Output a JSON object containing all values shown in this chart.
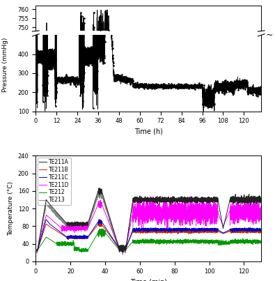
{
  "pressure_chart": {
    "xlabel": "Time (h)",
    "ylabel": "Pressure (mmHg)",
    "xlim": [
      0,
      130
    ],
    "ylim": [
      100,
      760
    ],
    "yticks_bottom": [
      100,
      200,
      300,
      400
    ],
    "yticks_top": [
      750,
      755,
      760
    ],
    "xticks": [
      0,
      12,
      24,
      36,
      48,
      60,
      72,
      84,
      96,
      108,
      120
    ],
    "color": "black"
  },
  "temperature_chart": {
    "xlabel": "Time (min)",
    "ylabel": "Temperature (°C)",
    "xlim": [
      0,
      130
    ],
    "ylim": [
      0,
      240
    ],
    "yticks": [
      0,
      40,
      80,
      120,
      160,
      200,
      240
    ],
    "xticks": [
      0,
      20,
      40,
      60,
      80,
      100,
      120
    ],
    "legend": [
      "TE211A",
      "TE211B",
      "TE211C",
      "TE211D",
      "TE212",
      "TE213"
    ],
    "colors": {
      "TE211A": "#222222",
      "TE211B": "#cc2200",
      "TE211C": "#0000cc",
      "TE211D": "#ff00ff",
      "TE212": "#009900",
      "TE213": "#888888"
    }
  },
  "background_color": "#ffffff"
}
